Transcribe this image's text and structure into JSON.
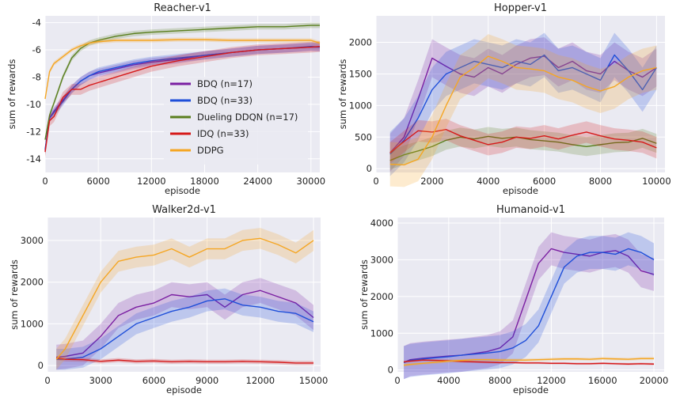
{
  "chart_data": [
    {
      "type": "line",
      "title": "Reacher-v1",
      "xlabel": "episode",
      "ylabel": "sum of rewards",
      "xlim": [
        0,
        31000
      ],
      "ylim": [
        -15,
        -3.5
      ],
      "xticks": [
        0,
        6000,
        12000,
        18000,
        24000,
        30000
      ],
      "xtick_labels": [
        "0",
        "6000",
        "12000",
        "18000",
        "24000",
        "30000"
      ],
      "yticks": [
        -14,
        -12,
        -10,
        -8,
        -6,
        -4
      ],
      "ytick_labels": [
        "-14",
        "-12",
        "-10",
        "-8",
        "-6",
        "-4"
      ],
      "grid": true,
      "legend": {
        "placement": "center-right",
        "entries": [
          "BDQ (n=17)",
          "BDQ (n=33)",
          "Dueling DDQN (n=17)",
          "IDQ (n=33)",
          "DDPG"
        ]
      },
      "series": [
        {
          "name": "BDQ (n=17)",
          "color": "#7b1fa2",
          "band": 0.3,
          "x": [
            0,
            500,
            1000,
            2000,
            3000,
            4000,
            5000,
            6000,
            8000,
            10000,
            12000,
            15000,
            18000,
            21000,
            24000,
            27000,
            30000,
            31000
          ],
          "y": [
            -13.4,
            -11.0,
            -10.5,
            -9.7,
            -8.9,
            -8.3,
            -7.9,
            -7.7,
            -7.4,
            -7.1,
            -6.9,
            -6.7,
            -6.4,
            -6.2,
            -6.0,
            -5.9,
            -5.8,
            -5.8
          ]
        },
        {
          "name": "BDQ (n=33)",
          "color": "#1f4fd9",
          "band": 0.3,
          "x": [
            0,
            500,
            1000,
            2000,
            3000,
            4000,
            5000,
            6000,
            8000,
            10000,
            12000,
            15000,
            18000,
            21000,
            24000,
            27000,
            30000,
            31000
          ],
          "y": [
            -13.3,
            -11.0,
            -10.6,
            -9.8,
            -8.9,
            -8.3,
            -7.9,
            -7.6,
            -7.3,
            -7.0,
            -6.8,
            -6.6,
            -6.4,
            -6.2,
            -6.0,
            -5.9,
            -5.75,
            -5.8
          ]
        },
        {
          "name": "Dueling DDQN (n=17)",
          "color": "#5a7f1e",
          "band": 0.2,
          "x": [
            0,
            500,
            1000,
            2000,
            3000,
            4000,
            5000,
            6000,
            8000,
            10000,
            12000,
            15000,
            18000,
            21000,
            24000,
            27000,
            30000,
            31000
          ],
          "y": [
            -12.6,
            -10.8,
            -9.9,
            -8.0,
            -6.6,
            -5.9,
            -5.5,
            -5.3,
            -5.0,
            -4.8,
            -4.7,
            -4.6,
            -4.5,
            -4.4,
            -4.3,
            -4.3,
            -4.2,
            -4.2
          ]
        },
        {
          "name": "IDQ (n=33)",
          "color": "#d61a1a",
          "band": 0.4,
          "x": [
            0,
            500,
            1000,
            2000,
            3000,
            4000,
            5000,
            6000,
            8000,
            10000,
            12000,
            15000,
            18000,
            21000,
            24000,
            27000,
            30000,
            31000
          ],
          "y": [
            -13.5,
            -11.2,
            -10.9,
            -9.5,
            -8.9,
            -8.9,
            -8.6,
            -8.4,
            -8.0,
            -7.6,
            -7.2,
            -6.8,
            -6.5,
            -6.2,
            -6.0,
            -5.9,
            -5.8,
            -5.75
          ]
        },
        {
          "name": "DDPG",
          "color": "#f5a623",
          "band": 0.15,
          "x": [
            0,
            500,
            1000,
            2000,
            3000,
            4000,
            5000,
            6000,
            8000,
            10000,
            12000,
            15000,
            18000,
            21000,
            24000,
            27000,
            30000,
            31000
          ],
          "y": [
            -9.6,
            -7.6,
            -7.0,
            -6.5,
            -6.0,
            -5.7,
            -5.5,
            -5.4,
            -5.3,
            -5.3,
            -5.3,
            -5.25,
            -5.25,
            -5.3,
            -5.3,
            -5.3,
            -5.3,
            -5.5
          ]
        }
      ]
    },
    {
      "type": "line",
      "title": "Hopper-v1",
      "xlabel": "episode",
      "ylabel": "sum of rewards",
      "xlim": [
        0,
        10300
      ],
      "ylim": [
        -60,
        2420
      ],
      "xticks": [
        0,
        2000,
        4000,
        6000,
        8000,
        10000
      ],
      "xtick_labels": [
        "0",
        "2000",
        "4000",
        "6000",
        "8000",
        "10000"
      ],
      "yticks": [
        0,
        500,
        1000,
        1500,
        2000
      ],
      "ytick_labels": [
        "0",
        "500",
        "1000",
        "1500",
        "2000"
      ],
      "grid": true,
      "series": [
        {
          "name": "BDQ (n=17)",
          "color": "#7b1fa2",
          "band": 300,
          "x": [
            500,
            1000,
            1500,
            2000,
            2500,
            3000,
            3500,
            4000,
            4500,
            5000,
            5500,
            6000,
            6500,
            7000,
            7500,
            8000,
            8500,
            9000,
            9500,
            10000
          ],
          "y": [
            250,
            500,
            1100,
            1750,
            1620,
            1500,
            1450,
            1600,
            1500,
            1650,
            1750,
            1780,
            1600,
            1700,
            1550,
            1500,
            1700,
            1550,
            1450,
            1600
          ]
        },
        {
          "name": "BDQ (n=33)",
          "color": "#1f4fd9",
          "band": 350,
          "x": [
            500,
            1000,
            1500,
            2000,
            2500,
            3000,
            3500,
            4000,
            4500,
            5000,
            5500,
            6000,
            6500,
            7000,
            7500,
            8000,
            8500,
            9000,
            9500,
            10000
          ],
          "y": [
            230,
            450,
            800,
            1250,
            1500,
            1600,
            1700,
            1650,
            1600,
            1700,
            1650,
            1800,
            1550,
            1600,
            1500,
            1400,
            1800,
            1550,
            1250,
            1600
          ]
        },
        {
          "name": "Dueling DDQN (n=17)",
          "color": "#5a7f1e",
          "band": 150,
          "x": [
            500,
            1000,
            1500,
            2000,
            2500,
            3000,
            3500,
            4000,
            4500,
            5000,
            5500,
            6000,
            6500,
            7000,
            7500,
            8000,
            8500,
            9000,
            9500,
            10000
          ],
          "y": [
            130,
            220,
            280,
            350,
            450,
            500,
            470,
            510,
            480,
            500,
            460,
            440,
            420,
            380,
            350,
            380,
            410,
            420,
            480,
            400
          ]
        },
        {
          "name": "IDQ (n=33)",
          "color": "#d61a1a",
          "band": 170,
          "x": [
            500,
            1000,
            1500,
            2000,
            2500,
            3000,
            3500,
            4000,
            4500,
            5000,
            5500,
            6000,
            6500,
            7000,
            7500,
            8000,
            8500,
            9000,
            9500,
            10000
          ],
          "y": [
            250,
            430,
            600,
            580,
            620,
            520,
            450,
            380,
            420,
            500,
            480,
            520,
            470,
            530,
            580,
            520,
            470,
            450,
            420,
            330
          ]
        },
        {
          "name": "DDPG",
          "color": "#f5a623",
          "band": 350,
          "x": [
            500,
            1000,
            1500,
            2000,
            2500,
            3000,
            3500,
            4000,
            4500,
            5000,
            5500,
            6000,
            6500,
            7000,
            7500,
            8000,
            8500,
            9000,
            9500,
            10000
          ],
          "y": [
            70,
            60,
            150,
            500,
            1000,
            1450,
            1600,
            1780,
            1700,
            1600,
            1580,
            1550,
            1450,
            1400,
            1300,
            1230,
            1300,
            1450,
            1550,
            1600
          ]
        }
      ]
    },
    {
      "type": "line",
      "title": "Walker2d-v1",
      "xlabel": "episode",
      "ylabel": "sum of rewards",
      "xlim": [
        0,
        15400
      ],
      "ylim": [
        -150,
        3550
      ],
      "xticks": [
        0,
        3000,
        6000,
        9000,
        12000,
        15000
      ],
      "xtick_labels": [
        "0",
        "3000",
        "6000",
        "9000",
        "12000",
        "15000"
      ],
      "yticks": [
        0,
        1000,
        2000,
        3000
      ],
      "ytick_labels": [
        "0",
        "1000",
        "2000",
        "3000"
      ],
      "grid": true,
      "series": [
        {
          "name": "BDQ (n=17)",
          "color": "#7b1fa2",
          "band": 300,
          "x": [
            500,
            1000,
            2000,
            3000,
            4000,
            5000,
            6000,
            7000,
            8000,
            9000,
            10000,
            11000,
            12000,
            13000,
            14000,
            15000
          ],
          "y": [
            200,
            220,
            300,
            700,
            1200,
            1400,
            1500,
            1700,
            1650,
            1700,
            1400,
            1700,
            1800,
            1650,
            1500,
            1150
          ]
        },
        {
          "name": "BDQ (n=33)",
          "color": "#1f4fd9",
          "band": 250,
          "x": [
            500,
            1000,
            2000,
            3000,
            4000,
            5000,
            6000,
            7000,
            8000,
            9000,
            10000,
            11000,
            12000,
            13000,
            14000,
            15000
          ],
          "y": [
            150,
            150,
            200,
            400,
            700,
            1000,
            1150,
            1300,
            1400,
            1550,
            1600,
            1450,
            1400,
            1300,
            1250,
            1050
          ]
        },
        {
          "name": "IDQ (n=33)",
          "color": "#d61a1a",
          "band": 50,
          "x": [
            500,
            1000,
            2000,
            3000,
            4000,
            5000,
            6000,
            7000,
            8000,
            9000,
            10000,
            11000,
            12000,
            13000,
            14000,
            15000
          ],
          "y": [
            180,
            150,
            140,
            100,
            130,
            100,
            110,
            90,
            100,
            90,
            90,
            100,
            90,
            80,
            60,
            60
          ]
        },
        {
          "name": "DDPG",
          "color": "#f5a623",
          "band": 250,
          "x": [
            500,
            1000,
            2000,
            3000,
            4000,
            5000,
            6000,
            7000,
            8000,
            9000,
            10000,
            11000,
            12000,
            13000,
            14000,
            15000
          ],
          "y": [
            150,
            400,
            1200,
            2000,
            2500,
            2600,
            2650,
            2800,
            2600,
            2800,
            2800,
            3000,
            3050,
            2900,
            2700,
            3000
          ]
        }
      ]
    },
    {
      "type": "line",
      "title": "Humanoid-v1",
      "xlabel": "episode",
      "ylabel": "sum of rewards",
      "xlim": [
        0,
        20800
      ],
      "ylim": [
        -50,
        4150
      ],
      "xticks": [
        0,
        4000,
        8000,
        12000,
        16000,
        20000
      ],
      "xtick_labels": [
        "0",
        "4000",
        "8000",
        "12000",
        "16000",
        "20000"
      ],
      "yticks": [
        0,
        1000,
        2000,
        3000,
        4000
      ],
      "ytick_labels": [
        "0",
        "1000",
        "2000",
        "3000",
        "4000"
      ],
      "grid": true,
      "series": [
        {
          "name": "BDQ (n=17)",
          "color": "#7b1fa2",
          "band": 450,
          "x": [
            500,
            1000,
            2000,
            3000,
            4000,
            5000,
            6000,
            7000,
            8000,
            9000,
            10000,
            11000,
            12000,
            13000,
            14000,
            15000,
            16000,
            17000,
            18000,
            19000,
            20000
          ],
          "y": [
            200,
            280,
            320,
            350,
            380,
            400,
            450,
            500,
            600,
            900,
            1900,
            2900,
            3300,
            3200,
            3150,
            3100,
            3200,
            3250,
            3100,
            2700,
            2600
          ]
        },
        {
          "name": "BDQ (n=33)",
          "color": "#1f4fd9",
          "band": 450,
          "x": [
            500,
            1000,
            2000,
            3000,
            4000,
            5000,
            6000,
            7000,
            8000,
            9000,
            10000,
            11000,
            12000,
            13000,
            14000,
            15000,
            16000,
            17000,
            18000,
            19000,
            20000
          ],
          "y": [
            200,
            260,
            300,
            330,
            360,
            400,
            430,
            460,
            500,
            600,
            800,
            1200,
            2000,
            2800,
            3100,
            3200,
            3200,
            3150,
            3300,
            3200,
            3000
          ]
        },
        {
          "name": "IDQ (n=33)",
          "color": "#d61a1a",
          "band": 30,
          "x": [
            500,
            1000,
            2000,
            3000,
            4000,
            5000,
            6000,
            7000,
            8000,
            9000,
            10000,
            11000,
            12000,
            13000,
            14000,
            15000,
            16000,
            17000,
            18000,
            19000,
            20000
          ],
          "y": [
            220,
            240,
            270,
            260,
            250,
            230,
            220,
            210,
            200,
            200,
            190,
            190,
            180,
            180,
            170,
            170,
            180,
            170,
            160,
            170,
            160
          ]
        },
        {
          "name": "DDPG",
          "color": "#f5a623",
          "band": 40,
          "x": [
            500,
            1000,
            2000,
            3000,
            4000,
            5000,
            6000,
            7000,
            8000,
            9000,
            10000,
            11000,
            12000,
            13000,
            14000,
            15000,
            16000,
            17000,
            18000,
            19000,
            20000
          ],
          "y": [
            130,
            150,
            180,
            210,
            240,
            260,
            280,
            280,
            270,
            270,
            270,
            280,
            290,
            300,
            300,
            290,
            310,
            300,
            290,
            310,
            310
          ]
        }
      ]
    }
  ]
}
